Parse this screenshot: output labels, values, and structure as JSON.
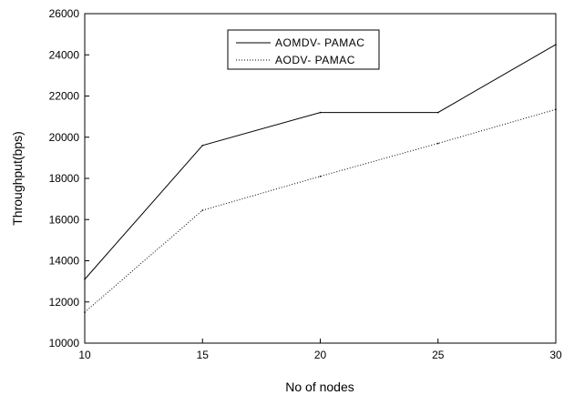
{
  "chart_data": {
    "type": "line",
    "x": [
      10,
      15,
      20,
      25,
      30
    ],
    "xlabel": "No of nodes",
    "ylabel": "Throughput(bps)",
    "xlim": [
      10,
      30
    ],
    "ylim": [
      10000,
      26000
    ],
    "xticks": [
      "10",
      "15",
      "20",
      "25",
      "30"
    ],
    "yticks": [
      "10000",
      "12000",
      "14000",
      "16000",
      "18000",
      "20000",
      "22000",
      "24000",
      "26000"
    ],
    "grid": false,
    "legend_position": "top-center",
    "series": [
      {
        "name": "AOMDV- PAMAC",
        "style": "solid",
        "color": "#000000",
        "values": [
          13100,
          19600,
          21200,
          21200,
          24500
        ]
      },
      {
        "name": "AODV- PAMAC",
        "style": "dotted",
        "color": "#000000",
        "values": [
          11500,
          16450,
          18100,
          19700,
          21350
        ]
      }
    ]
  }
}
